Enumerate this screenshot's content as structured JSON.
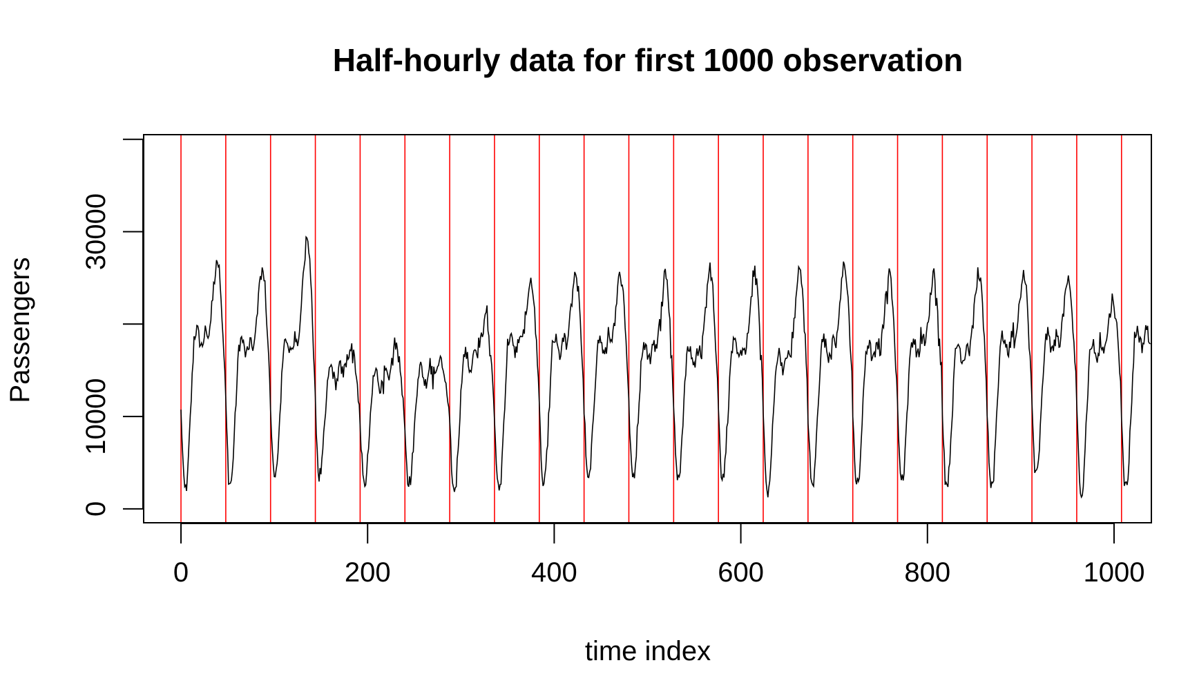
{
  "chart_data": {
    "type": "line",
    "title": "Half-hourly data for first 1000 observation",
    "xlabel": "time index",
    "ylabel": "Passengers",
    "xlim": [
      -40,
      1040
    ],
    "ylim": [
      -1500,
      40500
    ],
    "x_ticks": [
      0,
      200,
      400,
      600,
      800,
      1000
    ],
    "x_tick_labels": [
      "0",
      "200",
      "400",
      "600",
      "800",
      "1000"
    ],
    "y_ticks": [
      0,
      10000,
      20000,
      30000,
      40000
    ],
    "y_tick_labels": [
      "0",
      "10000",
      "",
      "30000",
      ""
    ],
    "grid": false,
    "legend": "none",
    "reference_lines": {
      "orientation": "vertical",
      "color": "#ff0000",
      "x": [
        0,
        48,
        96,
        144,
        192,
        240,
        288,
        336,
        384,
        432,
        480,
        528,
        576,
        624,
        672,
        720,
        768,
        816,
        864,
        912,
        960,
        1008
      ]
    },
    "series": [
      {
        "color": "#000000",
        "period": 48,
        "samples_per_period": 48,
        "n_points": 1040,
        "day_min": [
          2000,
          2500,
          3000,
          3300,
          2500,
          2600,
          1900,
          2000,
          2400,
          2900,
          3200,
          3100,
          3300,
          1700,
          2400,
          2300,
          3000,
          2500,
          2400,
          3300,
          1800,
          2200
        ],
        "day_midday": [
          18500,
          17500,
          17800,
          14500,
          14000,
          14500,
          16000,
          17800,
          17500,
          17500,
          17000,
          16500,
          17000,
          16000,
          17500,
          17000,
          17500,
          17000,
          17800,
          18000,
          17000,
          18500
        ],
        "day_peak": [
          27500,
          26500,
          30000,
          18000,
          17500,
          16000,
          21500,
          25200,
          26000,
          26000,
          26000,
          26500,
          26000,
          26500,
          26800,
          26000,
          26000,
          26000,
          26000,
          25000,
          23000,
          18000
        ],
        "jitter": 800
      }
    ]
  }
}
